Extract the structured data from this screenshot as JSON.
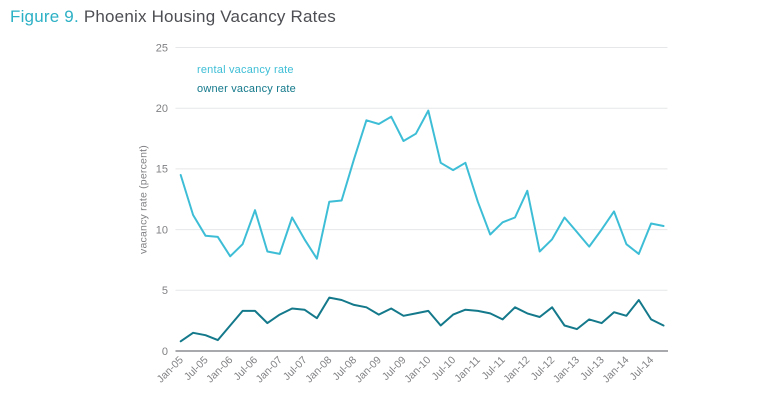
{
  "figure": {
    "label": "Figure 9.",
    "title": " Phoenix Housing Vacancy Rates"
  },
  "legend": {
    "rental": "rental vacancy rate",
    "owner": "owner vacancy rate"
  },
  "colors": {
    "rental_line": "#3ebed6",
    "owner_line": "#14798b",
    "figure_label": "#2cb0c5",
    "title_text": "#4d4e53",
    "axis_text": "#808184",
    "gridline": "#e6e7e8",
    "zero_axis_line": "#a7a9ac"
  },
  "chart_data": {
    "type": "line",
    "title": "Phoenix Housing Vacancy Rates",
    "xlabel": "",
    "ylabel": "vacancy rate (percent)",
    "ylim": [
      0,
      25
    ],
    "yticks": [
      0,
      5,
      10,
      15,
      20,
      25
    ],
    "grid": "horizontal",
    "legend_position": "inside-top-left",
    "x_frequency": "quarterly",
    "x_tick_labels_shown": [
      "Jan-05",
      "Jul-05",
      "Jan-06",
      "Jul-06",
      "Jan-07",
      "Jul-07",
      "Jan-08",
      "Jul-08",
      "Jan-09",
      "Jul-09",
      "Jan-10",
      "Jul-10",
      "Jan-11",
      "Jul-11",
      "Jan-12",
      "Jul-12",
      "Jan-13",
      "Jul-13",
      "Jan-14",
      "Jul-14"
    ],
    "x": [
      "Jan-05",
      "Apr-05",
      "Jul-05",
      "Oct-05",
      "Jan-06",
      "Apr-06",
      "Jul-06",
      "Oct-06",
      "Jan-07",
      "Apr-07",
      "Jul-07",
      "Oct-07",
      "Jan-08",
      "Apr-08",
      "Jul-08",
      "Oct-08",
      "Jan-09",
      "Apr-09",
      "Jul-09",
      "Oct-09",
      "Jan-10",
      "Apr-10",
      "Jul-10",
      "Oct-10",
      "Jan-11",
      "Apr-11",
      "Jul-11",
      "Oct-11",
      "Jan-12",
      "Apr-12",
      "Jul-12",
      "Oct-12",
      "Jan-13",
      "Apr-13",
      "Jul-13",
      "Oct-13",
      "Jan-14",
      "Apr-14",
      "Jul-14",
      "Oct-14"
    ],
    "series": [
      {
        "name": "rental vacancy rate",
        "color": "#3ebed6",
        "values": [
          14.5,
          11.2,
          9.5,
          9.4,
          7.8,
          8.8,
          11.6,
          8.2,
          8.0,
          11.0,
          9.2,
          7.6,
          12.3,
          12.4,
          15.8,
          19.0,
          18.7,
          19.3,
          17.3,
          17.9,
          19.8,
          15.5,
          14.9,
          15.5,
          12.3,
          9.6,
          10.6,
          11.0,
          13.2,
          8.2,
          9.2,
          11.0,
          9.8,
          8.6,
          10.0,
          11.5,
          8.8,
          8.0,
          10.5,
          10.3
        ]
      },
      {
        "name": "owner vacancy rate",
        "color": "#14798b",
        "values": [
          0.8,
          1.5,
          1.3,
          0.9,
          2.1,
          3.3,
          3.3,
          2.3,
          3.0,
          3.5,
          3.4,
          2.7,
          4.4,
          4.2,
          3.8,
          3.6,
          3.0,
          3.5,
          2.9,
          3.1,
          3.3,
          2.1,
          3.0,
          3.4,
          3.3,
          3.1,
          2.6,
          3.6,
          3.1,
          2.8,
          3.6,
          2.1,
          1.8,
          2.6,
          2.3,
          3.2,
          2.9,
          4.2,
          2.6,
          2.1
        ]
      }
    ]
  }
}
